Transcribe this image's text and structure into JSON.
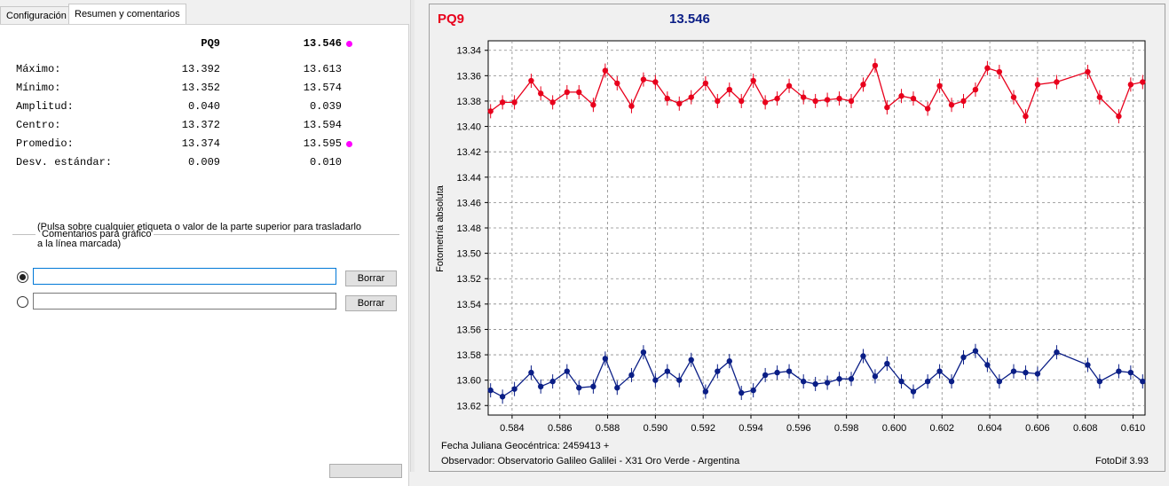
{
  "tabs": [
    "Configuración",
    "Resumen y comentarios"
  ],
  "summary": {
    "col1_header": "PQ9",
    "col2_header": "13.546",
    "highlight_color": "#ff00ff",
    "rows": [
      {
        "label": "Máximo:",
        "v1": "13.392",
        "v2": "13.613"
      },
      {
        "label": "Mínimo:",
        "v1": "13.352",
        "v2": "13.574"
      },
      {
        "label": "Amplitud:",
        "v1": "0.040",
        "v2": "0.039"
      },
      {
        "label": "Centro:",
        "v1": "13.372",
        "v2": "13.594"
      },
      {
        "label": "Promedio:",
        "v1": "13.374",
        "v2": "13.595"
      },
      {
        "label": "Desv. estándar:",
        "v1": "0.009",
        "v2": "0.010"
      }
    ]
  },
  "comments": {
    "section_title": "Comentarios para gráfico",
    "hint_line1": "(Pulsa sobre cualquier etiqueta o valor de la parte superior para trasladarlo",
    "hint_line2": "a la línea marcada)",
    "line1_value": "",
    "line2_value": "",
    "line1_selected": true,
    "clear_label": "Borrar"
  },
  "chart_data": {
    "type": "line",
    "title_left": "PQ9",
    "title_right": "13.546",
    "ylabel": "Fotometría absoluta",
    "xlabel": "Fecha Juliana Geocéntrica: 2459413 +",
    "observer": "Observador: Observatorio Galileo Galilei - X31 Oro Verde - Argentina",
    "software": "FotoDif 3.93",
    "xlim": [
      0.583,
      0.6105
    ],
    "ylim": [
      13.3325,
      13.6275
    ],
    "y_inverted": true,
    "grid": true,
    "xticks": [
      0.584,
      0.586,
      0.588,
      0.59,
      0.592,
      0.594,
      0.596,
      0.598,
      0.6,
      0.602,
      0.604,
      0.606,
      0.608,
      0.61
    ],
    "yticks": [
      13.34,
      13.36,
      13.38,
      13.4,
      13.42,
      13.44,
      13.46,
      13.48,
      13.5,
      13.52,
      13.54,
      13.56,
      13.58,
      13.6,
      13.62
    ],
    "x": [
      0.5831,
      0.5836,
      0.5841,
      0.5848,
      0.5852,
      0.5857,
      0.5863,
      0.5868,
      0.5874,
      0.5879,
      0.5884,
      0.589,
      0.5895,
      0.59,
      0.5905,
      0.591,
      0.5915,
      0.5921,
      0.5926,
      0.5931,
      0.5936,
      0.5941,
      0.5946,
      0.5951,
      0.5956,
      0.5962,
      0.5967,
      0.5972,
      0.5977,
      0.5982,
      0.5987,
      0.5992,
      0.5997,
      0.6003,
      0.6008,
      0.6014,
      0.6019,
      0.6024,
      0.6029,
      0.6034,
      0.6039,
      0.6044,
      0.605,
      0.6055,
      0.606,
      0.6068,
      0.6081,
      0.6086,
      0.6094,
      0.6099,
      0.6104
    ],
    "series": [
      {
        "name": "PQ9",
        "color": "#e8001c",
        "values": [
          13.388,
          13.381,
          13.381,
          13.364,
          13.374,
          13.381,
          13.373,
          13.373,
          13.383,
          13.356,
          13.366,
          13.384,
          13.363,
          13.365,
          13.378,
          13.382,
          13.377,
          13.366,
          13.38,
          13.371,
          13.38,
          13.364,
          13.381,
          13.378,
          13.368,
          13.377,
          13.38,
          13.379,
          13.378,
          13.38,
          13.367,
          13.352,
          13.385,
          13.376,
          13.378,
          13.386,
          13.368,
          13.383,
          13.38,
          13.371,
          13.354,
          13.357,
          13.377,
          13.392,
          13.367,
          13.365,
          13.357,
          13.377,
          13.392,
          13.367,
          13.365
        ]
      },
      {
        "name": "13.546",
        "color": "#0a1e86",
        "values": [
          13.608,
          13.613,
          13.607,
          13.594,
          13.605,
          13.601,
          13.593,
          13.606,
          13.605,
          13.583,
          13.606,
          13.596,
          13.578,
          13.6,
          13.593,
          13.6,
          13.584,
          13.609,
          13.593,
          13.585,
          13.61,
          13.608,
          13.596,
          13.594,
          13.593,
          13.601,
          13.603,
          13.602,
          13.599,
          13.599,
          13.581,
          13.597,
          13.587,
          13.601,
          13.609,
          13.601,
          13.593,
          13.601,
          13.582,
          13.577,
          13.588,
          13.601,
          13.593,
          13.594,
          13.595,
          13.578,
          13.588,
          13.601,
          13.593,
          13.594,
          13.601
        ]
      }
    ]
  }
}
